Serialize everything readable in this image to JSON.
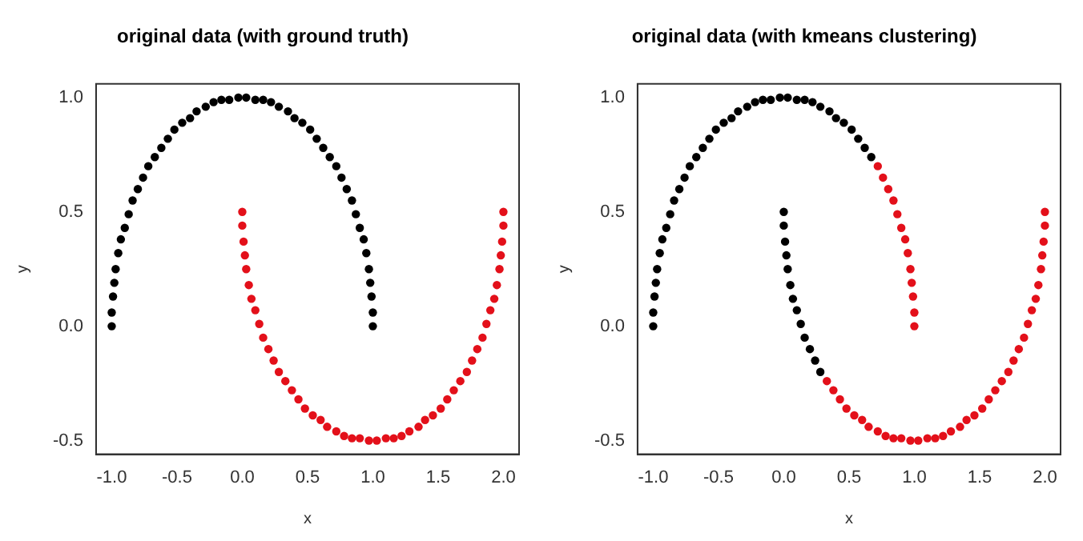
{
  "chart_data": [
    {
      "type": "scatter",
      "title": "original data (with ground truth)",
      "xlabel": "x",
      "ylabel": "y",
      "xlim": [
        -1.12,
        2.12
      ],
      "ylim": [
        -0.56,
        1.06
      ],
      "xticks": [
        {
          "value": -1,
          "label": "-1.0"
        },
        {
          "value": -0.5,
          "label": "-0.5"
        },
        {
          "value": 0,
          "label": "0.0"
        },
        {
          "value": 0.5,
          "label": "0.5"
        },
        {
          "value": 1,
          "label": "1.0"
        },
        {
          "value": 1.5,
          "label": "1.5"
        },
        {
          "value": 2,
          "label": "2.0"
        }
      ],
      "yticks": [
        {
          "value": -0.5,
          "label": "-0.5"
        },
        {
          "value": 0,
          "label": "0.0"
        },
        {
          "value": 0.5,
          "label": "0.5"
        },
        {
          "value": 1,
          "label": "1.0"
        }
      ],
      "grid": false,
      "legend": false,
      "marker": "circle",
      "series": [
        {
          "color": "#000000",
          "x": [
            1.0,
            1.0,
            0.99,
            0.98,
            0.97,
            0.95,
            0.93,
            0.9,
            0.87,
            0.84,
            0.8,
            0.76,
            0.72,
            0.67,
            0.62,
            0.57,
            0.52,
            0.46,
            0.4,
            0.35,
            0.28,
            0.22,
            0.16,
            0.1,
            0.03,
            -0.03,
            -0.1,
            -0.16,
            -0.22,
            -0.28,
            -0.35,
            -0.4,
            -0.46,
            -0.52,
            -0.57,
            -0.62,
            -0.67,
            -0.72,
            -0.76,
            -0.8,
            -0.84,
            -0.87,
            -0.9,
            -0.93,
            -0.95,
            -0.97,
            -0.98,
            -0.99,
            -1.0,
            -1.0
          ],
          "values": [
            0.0,
            0.06,
            0.13,
            0.19,
            0.25,
            0.32,
            0.38,
            0.43,
            0.49,
            0.55,
            0.6,
            0.65,
            0.7,
            0.74,
            0.78,
            0.82,
            0.86,
            0.89,
            0.91,
            0.94,
            0.96,
            0.98,
            0.99,
            0.99,
            1.0,
            1.0,
            0.99,
            0.99,
            0.98,
            0.96,
            0.94,
            0.91,
            0.89,
            0.86,
            0.82,
            0.78,
            0.74,
            0.7,
            0.65,
            0.6,
            0.55,
            0.49,
            0.43,
            0.38,
            0.32,
            0.25,
            0.19,
            0.13,
            0.06,
            0.0
          ]
        },
        {
          "color": "#e3101a",
          "x": [
            0.0,
            0.0,
            0.01,
            0.02,
            0.03,
            0.05,
            0.07,
            0.1,
            0.13,
            0.16,
            0.2,
            0.24,
            0.28,
            0.33,
            0.38,
            0.43,
            0.48,
            0.54,
            0.6,
            0.65,
            0.72,
            0.78,
            0.84,
            0.9,
            0.97,
            1.03,
            1.1,
            1.16,
            1.22,
            1.28,
            1.35,
            1.4,
            1.46,
            1.52,
            1.57,
            1.62,
            1.67,
            1.72,
            1.76,
            1.8,
            1.84,
            1.87,
            1.9,
            1.93,
            1.95,
            1.97,
            1.98,
            1.99,
            2.0,
            2.0
          ],
          "values": [
            0.5,
            0.44,
            0.37,
            0.31,
            0.25,
            0.18,
            0.12,
            0.07,
            0.01,
            -0.05,
            -0.1,
            -0.15,
            -0.2,
            -0.24,
            -0.28,
            -0.32,
            -0.36,
            -0.39,
            -0.41,
            -0.44,
            -0.46,
            -0.48,
            -0.49,
            -0.49,
            -0.5,
            -0.5,
            -0.49,
            -0.49,
            -0.48,
            -0.46,
            -0.44,
            -0.41,
            -0.39,
            -0.36,
            -0.32,
            -0.28,
            -0.24,
            -0.2,
            -0.15,
            -0.1,
            -0.05,
            0.01,
            0.07,
            0.12,
            0.18,
            0.25,
            0.31,
            0.37,
            0.44,
            0.5
          ]
        }
      ]
    },
    {
      "type": "scatter",
      "title": "original data (with kmeans clustering)",
      "xlabel": "x",
      "ylabel": "y",
      "xlim": [
        -1.12,
        2.12
      ],
      "ylim": [
        -0.56,
        1.06
      ],
      "xticks": [
        {
          "value": -1,
          "label": "-1.0"
        },
        {
          "value": -0.5,
          "label": "-0.5"
        },
        {
          "value": 0,
          "label": "0.0"
        },
        {
          "value": 0.5,
          "label": "0.5"
        },
        {
          "value": 1,
          "label": "1.0"
        },
        {
          "value": 1.5,
          "label": "1.5"
        },
        {
          "value": 2,
          "label": "2.0"
        }
      ],
      "yticks": [
        {
          "value": -0.5,
          "label": "-0.5"
        },
        {
          "value": 0,
          "label": "0.0"
        },
        {
          "value": 0.5,
          "label": "0.5"
        },
        {
          "value": 1,
          "label": "1.0"
        }
      ],
      "grid": false,
      "legend": false,
      "marker": "circle",
      "series": [
        {
          "color": "#000000",
          "x": [
            0.67,
            0.62,
            0.57,
            0.52,
            0.46,
            0.4,
            0.35,
            0.28,
            0.22,
            0.16,
            0.1,
            0.03,
            -0.03,
            -0.1,
            -0.16,
            -0.22,
            -0.28,
            -0.35,
            -0.4,
            -0.46,
            -0.52,
            -0.57,
            -0.62,
            -0.67,
            -0.72,
            -0.76,
            -0.8,
            -0.84,
            -0.87,
            -0.9,
            -0.93,
            -0.95,
            -0.97,
            -0.98,
            -0.99,
            -1.0,
            -1.0,
            0.0,
            0.0,
            0.01,
            0.02,
            0.03,
            0.05,
            0.07,
            0.1,
            0.13,
            0.16,
            0.2,
            0.24,
            0.28
          ],
          "values": [
            0.74,
            0.78,
            0.82,
            0.86,
            0.89,
            0.91,
            0.94,
            0.96,
            0.98,
            0.99,
            0.99,
            1.0,
            1.0,
            0.99,
            0.99,
            0.98,
            0.96,
            0.94,
            0.91,
            0.89,
            0.86,
            0.82,
            0.78,
            0.74,
            0.7,
            0.65,
            0.6,
            0.55,
            0.49,
            0.43,
            0.38,
            0.32,
            0.25,
            0.19,
            0.13,
            0.06,
            0.0,
            0.5,
            0.44,
            0.37,
            0.31,
            0.25,
            0.18,
            0.12,
            0.07,
            0.01,
            -0.05,
            -0.1,
            -0.15,
            -0.2
          ]
        },
        {
          "color": "#e3101a",
          "x": [
            1.0,
            1.0,
            0.99,
            0.98,
            0.97,
            0.95,
            0.93,
            0.9,
            0.87,
            0.84,
            0.8,
            0.76,
            0.72,
            0.33,
            0.38,
            0.43,
            0.48,
            0.54,
            0.6,
            0.65,
            0.72,
            0.78,
            0.84,
            0.9,
            0.97,
            1.03,
            1.1,
            1.16,
            1.22,
            1.28,
            1.35,
            1.4,
            1.46,
            1.52,
            1.57,
            1.62,
            1.67,
            1.72,
            1.76,
            1.8,
            1.84,
            1.87,
            1.9,
            1.93,
            1.95,
            1.97,
            1.98,
            1.99,
            2.0,
            2.0
          ],
          "values": [
            0.0,
            0.06,
            0.13,
            0.19,
            0.25,
            0.32,
            0.38,
            0.43,
            0.49,
            0.55,
            0.6,
            0.65,
            0.7,
            -0.24,
            -0.28,
            -0.32,
            -0.36,
            -0.39,
            -0.41,
            -0.44,
            -0.46,
            -0.48,
            -0.49,
            -0.49,
            -0.5,
            -0.5,
            -0.49,
            -0.49,
            -0.48,
            -0.46,
            -0.44,
            -0.41,
            -0.39,
            -0.36,
            -0.32,
            -0.28,
            -0.24,
            -0.2,
            -0.15,
            -0.1,
            -0.05,
            0.01,
            0.07,
            0.12,
            0.18,
            0.25,
            0.31,
            0.37,
            0.44,
            0.5
          ]
        }
      ]
    }
  ]
}
